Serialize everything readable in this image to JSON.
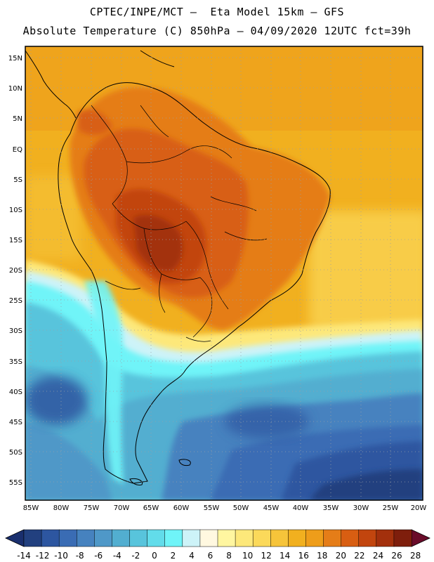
{
  "header": {
    "line1": "CPTEC/INPE/MCT –  Eta Model 15km – GFS",
    "line2": "Absolute Temperature (C) 850hPa – 04/09/2020 12UTC fct=39h"
  },
  "map": {
    "lat_labels": [
      "15N",
      "10N",
      "5N",
      "EQ",
      "5S",
      "10S",
      "15S",
      "20S",
      "25S",
      "30S",
      "35S",
      "40S",
      "45S",
      "50S",
      "55S"
    ],
    "lon_labels": [
      "85W",
      "80W",
      "75W",
      "70W",
      "65W",
      "60W",
      "55W",
      "50W",
      "45W",
      "40W",
      "35W",
      "30W",
      "25W",
      "20W"
    ],
    "grid": "dotted"
  },
  "colorbar": {
    "labels": [
      "-14",
      "-12",
      "-10",
      "-8",
      "-6",
      "-4",
      "-2",
      "0",
      "2",
      "4",
      "6",
      "8",
      "10",
      "12",
      "14",
      "16",
      "18",
      "20",
      "22",
      "24",
      "26",
      "28"
    ],
    "colors": [
      "#22407f",
      "#2d56a0",
      "#3a6cb4",
      "#4682bf",
      "#4f98c8",
      "#52aed0",
      "#58c4dc",
      "#62dcea",
      "#6ff4f8",
      "#cdf3f8",
      "#fff8e0",
      "#fff6a0",
      "#fde87a",
      "#fbd95a",
      "#f6c43a",
      "#f1b01f",
      "#ee9d1a",
      "#e57d18",
      "#d85e12",
      "#c2450e",
      "#a3300c",
      "#7e1e0c"
    ],
    "low_arrow_color": "#1a2f6e",
    "high_arrow_color": "#6a0c2a"
  },
  "palette": {
    "ocean_warm": "#f1b01f",
    "continent_hot": "#d85e12",
    "core_hot": "#a3300c",
    "ocean_cold": "#4682bf",
    "coastline": "#000000"
  }
}
